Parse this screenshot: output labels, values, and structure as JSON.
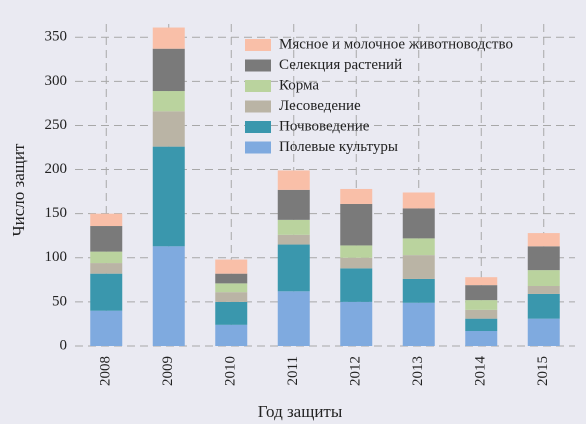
{
  "chart_data": {
    "type": "stacked_bar",
    "xlabel": "Год защиты",
    "ylabel": "Число защит",
    "categories": [
      "2008",
      "2009",
      "2010",
      "2011",
      "2012",
      "2013",
      "2014",
      "2015"
    ],
    "series": [
      {
        "name": "Полевые культуры",
        "color": "#7faadf",
        "values": [
          40,
          113,
          24,
          62,
          50,
          49,
          17,
          31
        ]
      },
      {
        "name": "Почвоведение",
        "color": "#3a97ad",
        "values": [
          42,
          113,
          26,
          53,
          38,
          27,
          14,
          28
        ]
      },
      {
        "name": "Лесоведение",
        "color": "#bab4a5",
        "values": [
          12,
          40,
          11,
          11,
          12,
          27,
          10,
          9
        ]
      },
      {
        "name": "Корма",
        "color": "#bad39e",
        "values": [
          13,
          23,
          10,
          17,
          14,
          19,
          11,
          18
        ]
      },
      {
        "name": "Селекция растений",
        "color": "#7a7a7a",
        "values": [
          29,
          48,
          11,
          34,
          47,
          34,
          17,
          27
        ]
      },
      {
        "name": "Мясное и молочное животноводство",
        "color": "#f9bfa8",
        "values": [
          14,
          24,
          16,
          22,
          17,
          18,
          9,
          15
        ]
      }
    ],
    "ylim": [
      0,
      365
    ],
    "yticks": [
      0,
      50,
      100,
      150,
      200,
      250,
      300,
      350
    ],
    "grid": true,
    "legend": "upper right"
  }
}
